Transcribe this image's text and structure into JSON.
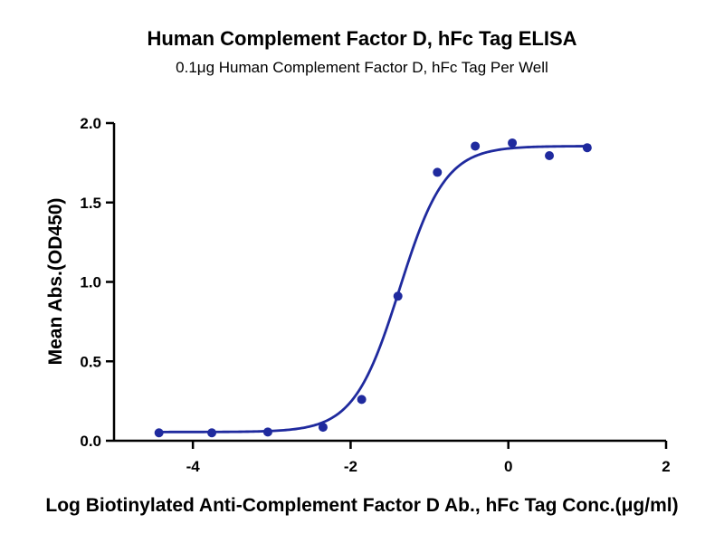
{
  "chart_data": {
    "type": "scatter",
    "title": "Human Complement Factor D, hFc Tag ELISA",
    "subtitle": "0.1μg Human Complement Factor D, hFc Tag Per Well",
    "xlabel": "Log Biotinylated Anti-Complement Factor D Ab., hFc Tag Conc.(μg/ml)",
    "ylabel": "Mean Abs.(OD450)",
    "xlim": [
      -5,
      2
    ],
    "ylim": [
      0,
      2.0
    ],
    "x_ticks": [
      -4,
      -2,
      0,
      2
    ],
    "x_tick_labels": [
      "-4",
      "-2",
      "0",
      "2"
    ],
    "y_ticks": [
      0,
      0.5,
      1.0,
      1.5,
      2.0
    ],
    "y_tick_labels": [
      "0.0",
      "0.5",
      "1.0",
      "1.5",
      "2.0"
    ],
    "grid": false,
    "series": [
      {
        "color": "#1f2a9e",
        "x": [
          -4.43,
          -3.76,
          -3.05,
          -2.35,
          -1.86,
          -1.4,
          -0.9,
          -0.42,
          0.05,
          0.52,
          1.0
        ],
        "y": [
          0.05,
          0.05,
          0.055,
          0.085,
          0.26,
          0.91,
          1.69,
          1.855,
          1.875,
          1.795,
          1.845
        ]
      }
    ],
    "fit_curve": {
      "type": "4PL-sigmoid",
      "bottom": 0.055,
      "top": 1.855,
      "log_ec50": -1.38,
      "hill_slope": 1.5,
      "x_range": [
        -4.43,
        1.0
      ]
    }
  }
}
